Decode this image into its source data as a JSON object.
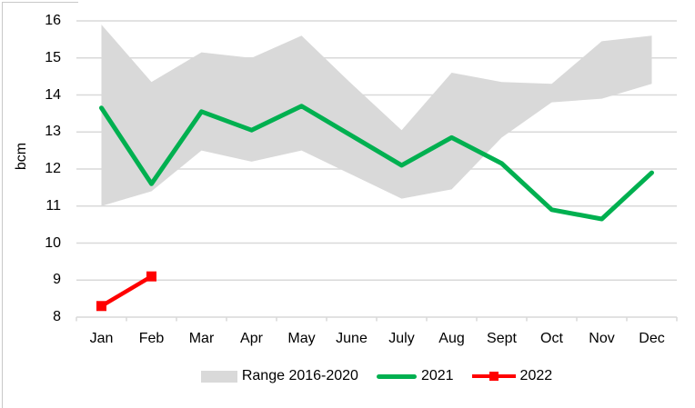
{
  "chart_data": {
    "type": "area",
    "title": "",
    "ylabel": "bcm",
    "xlabel": "",
    "ylim": [
      8,
      16
    ],
    "ytick_step": 1,
    "yticks": [
      "16",
      "15",
      "14",
      "13",
      "12",
      "11",
      "10",
      "9",
      "8"
    ],
    "categories": [
      "Jan",
      "Feb",
      "Mar",
      "Apr",
      "May",
      "June",
      "July",
      "Aug",
      "Sept",
      "Oct",
      "Nov",
      "Dec"
    ],
    "series": [
      {
        "name": "Range 2016-2020",
        "type": "band",
        "color": "#d9d9d9",
        "upper": [
          15.9,
          14.35,
          15.15,
          15.0,
          15.6,
          14.3,
          13.05,
          14.6,
          14.35,
          14.3,
          15.45,
          15.6
        ],
        "lower": [
          11.0,
          11.4,
          12.5,
          12.2,
          12.5,
          11.85,
          11.2,
          11.45,
          12.85,
          13.8,
          13.9,
          14.3
        ]
      },
      {
        "name": "2021",
        "type": "line",
        "color": "#00b050",
        "values": [
          13.65,
          11.6,
          13.55,
          13.05,
          13.7,
          12.9,
          12.1,
          12.85,
          12.15,
          10.9,
          10.65,
          11.9
        ]
      },
      {
        "name": "2022",
        "type": "line",
        "marker": "square",
        "color": "#ff0000",
        "values": [
          8.3,
          9.1,
          null,
          null,
          null,
          null,
          null,
          null,
          null,
          null,
          null,
          null
        ]
      }
    ],
    "legend_position": "bottom",
    "grid": true,
    "colors": {
      "grid": "#d9d9d9",
      "axis": "#d9d9d9",
      "text": "#000000",
      "frame": "#c8c8c8",
      "background": "#ffffff"
    }
  }
}
